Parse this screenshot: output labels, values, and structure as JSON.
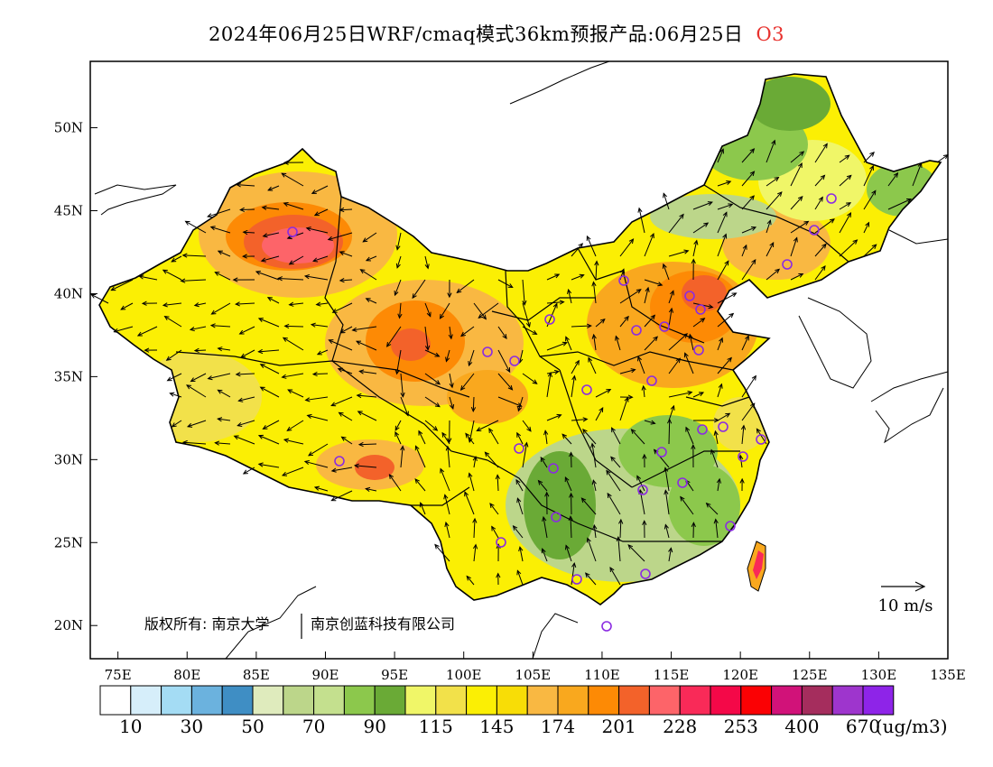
{
  "title": {
    "main": "2024年06月25日WRF/cmaq模式36km预报产品:06月25日",
    "species": "O3"
  },
  "map": {
    "lon_ticks": [
      "75E",
      "80E",
      "85E",
      "90E",
      "95E",
      "100E",
      "105E",
      "110E",
      "115E",
      "120E",
      "125E",
      "130E",
      "135E"
    ],
    "lat_ticks": [
      "50N",
      "45N",
      "40N",
      "35N",
      "30N",
      "25N",
      "20N"
    ],
    "lon_range": [
      73,
      135
    ],
    "lat_range": [
      18,
      54
    ],
    "wind_scale_label": "10 m/s",
    "credit_left": "版权所有: 南京大学",
    "credit_right": "南京创蓝科技有限公司",
    "station_color": "#8b2be2"
  },
  "legend": {
    "colors": [
      "#ffffff",
      "#d6eefa",
      "#a4dcf4",
      "#6bb2de",
      "#3f8ec4",
      "#dfebbd",
      "#bcd68a",
      "#c4e08e",
      "#8cc84c",
      "#6aaa36",
      "#f0f668",
      "#f2e14a",
      "#fbef04",
      "#f8dd06",
      "#f9b842",
      "#f9a81e",
      "#fd8a05",
      "#f3622a",
      "#fd6469",
      "#f92a58",
      "#f40848",
      "#fb0104",
      "#d11279",
      "#a52d5d",
      "#9e35cd",
      "#8e24e8"
    ],
    "labels": [
      "10",
      "30",
      "50",
      "70",
      "90",
      "115",
      "145",
      "174",
      "201",
      "228",
      "253",
      "400",
      "670"
    ],
    "unit": "(ug/m3)"
  }
}
